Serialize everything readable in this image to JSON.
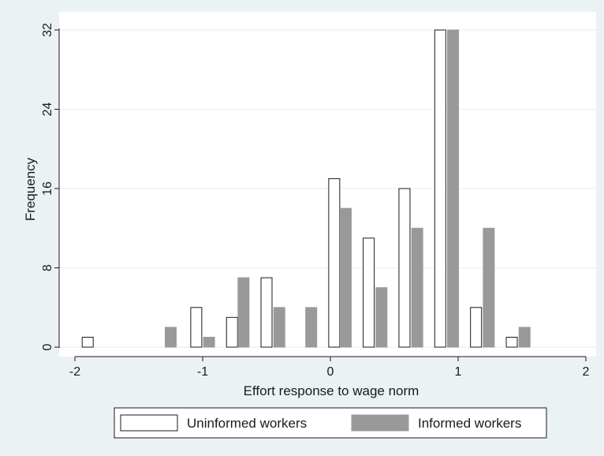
{
  "chart_data": {
    "type": "bar",
    "title": "",
    "xlabel": "Effort response to wage norm",
    "ylabel": "Frequency",
    "xlim": [
      -2,
      2
    ],
    "ylim": [
      0,
      32
    ],
    "xticks": [
      -2,
      -1,
      0,
      1,
      2
    ],
    "yticks": [
      0,
      8,
      16,
      24,
      32
    ],
    "grid": "horizontal",
    "legend": "bottom",
    "series": [
      {
        "name": "Uninformed workers",
        "color": "#ffffff",
        "x": [
          -1.9,
          -1.05,
          -0.77,
          -0.5,
          0.03,
          0.3,
          0.58,
          0.86,
          1.14,
          1.42
        ],
        "values": [
          1,
          4,
          3,
          7,
          17,
          11,
          16,
          32,
          4,
          1
        ]
      },
      {
        "name": "Informed workers",
        "color": "#999999",
        "x": [
          -1.25,
          -0.95,
          -0.68,
          -0.4,
          -0.15,
          0.12,
          0.4,
          0.68,
          0.96,
          1.24,
          1.52
        ],
        "values": [
          2,
          1,
          7,
          4,
          4,
          14,
          6,
          12,
          32,
          12,
          2
        ]
      }
    ]
  }
}
